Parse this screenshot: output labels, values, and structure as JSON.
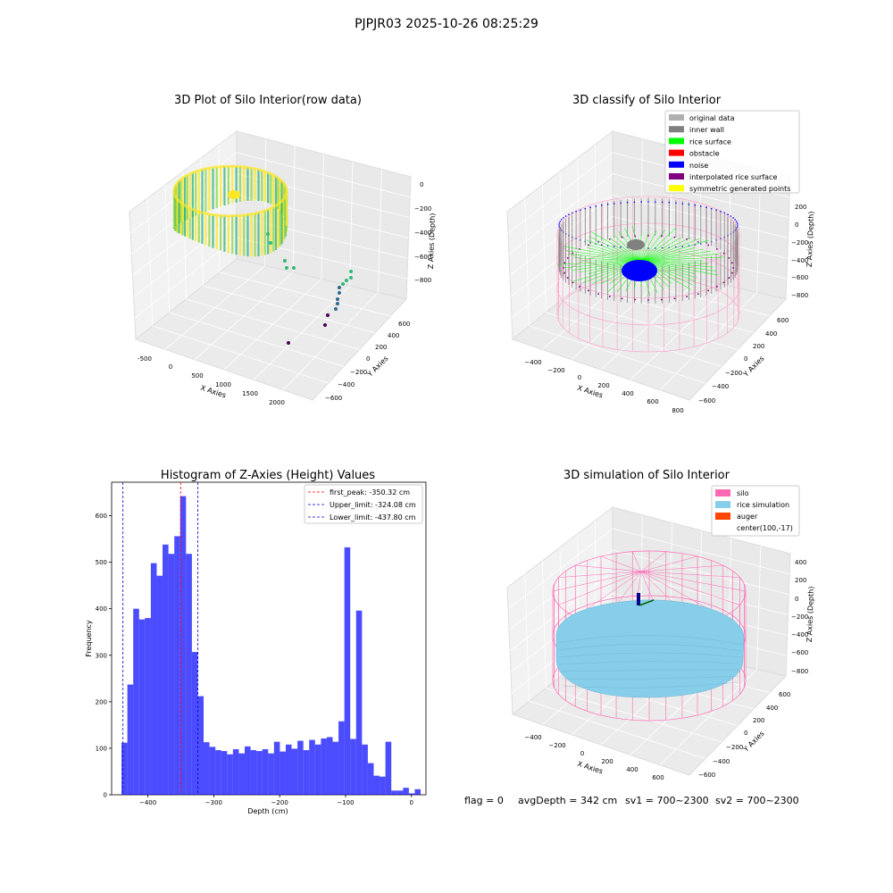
{
  "figure": {
    "suptitle": "PJPJR03 2025-10-26 08:25:29",
    "footer": {
      "flag": "flag = 0",
      "avg_depth": "avgDepth = 342 cm",
      "sv1": "sv1 = 700~2300",
      "sv2": "sv2 = 700~2300"
    }
  },
  "panel_raw": {
    "title": "3D Plot of Silo Interior(row data)",
    "xlabel": "X Axies",
    "ylabel": "Y Axies",
    "zlabel": "Z Axies (Depth)",
    "xticks": [
      "-500",
      "0",
      "500",
      "1000",
      "1500",
      "2000"
    ],
    "yticks": [
      "600",
      "400",
      "200",
      "0",
      "−200",
      "−400",
      "−600"
    ],
    "zticks": [
      "0",
      "−200",
      "−400",
      "−600",
      "−800"
    ],
    "colormap": [
      "#440154",
      "#31688e",
      "#35b779",
      "#90d743",
      "#fde725"
    ]
  },
  "panel_classify": {
    "title": "3D classify of Silo Interior",
    "xlabel": "X Axies",
    "ylabel": "Y Axies",
    "zlabel": "Z Axies (Depth)",
    "xticks": [
      "−400",
      "−200",
      "0",
      "200",
      "400",
      "600",
      "800"
    ],
    "yticks": [
      "600",
      "400",
      "200",
      "0",
      "−200",
      "−400",
      "−600"
    ],
    "zticks": [
      "200",
      "0",
      "−200",
      "−400",
      "−600",
      "−800"
    ],
    "legend": [
      {
        "label": "original data",
        "color": "#b0b0b0"
      },
      {
        "label": "inner wall",
        "color": "#808080"
      },
      {
        "label": "rice surface",
        "color": "#00ff00"
      },
      {
        "label": "obstacle",
        "color": "#ff0000"
      },
      {
        "label": "noise",
        "color": "#0000ff"
      },
      {
        "label": "interpolated rice surface",
        "color": "#800080"
      },
      {
        "label": "symmetric generated points",
        "color": "#ffff00"
      }
    ],
    "cylinder_color": "#ff9ec8"
  },
  "panel_sim": {
    "title": "3D simulation of Silo Interior",
    "xlabel": "X Axies",
    "ylabel": "Y Axies",
    "zlabel": "Z Axies (Depth)",
    "xticks": [
      "−400",
      "−200",
      "0",
      "200",
      "400",
      "600"
    ],
    "yticks": [
      "600",
      "400",
      "200",
      "0",
      "−200",
      "−400",
      "−600"
    ],
    "zticks": [
      "400",
      "200",
      "0",
      "−200",
      "−400",
      "−600",
      "−800"
    ],
    "legend": [
      {
        "label": "silo",
        "color": "#ff69b4"
      },
      {
        "label": "rice simulation",
        "color": "#87ceeb"
      },
      {
        "label": "auger",
        "color": "#ff4500"
      },
      {
        "label": "center(100,-17)",
        "color": ""
      }
    ]
  },
  "chart_data": {
    "type": "bar",
    "title": "Histogram of Z-Axies (Height) Values",
    "xlabel": "Depth (cm)",
    "ylabel": "Frequency",
    "xlim": [
      -455,
      22
    ],
    "ylim": [
      0,
      672
    ],
    "xticks": [
      -400,
      -300,
      -200,
      -100,
      0
    ],
    "xtick_labels": [
      "−400",
      "−300",
      "−200",
      "−100",
      "0"
    ],
    "yticks": [
      0,
      100,
      200,
      300,
      400,
      500,
      600
    ],
    "bin_start": -440,
    "bin_width": 8.9,
    "values": [
      112,
      237,
      400,
      377,
      380,
      498,
      471,
      538,
      518,
      556,
      642,
      518,
      307,
      212,
      113,
      103,
      96,
      94,
      87,
      98,
      89,
      104,
      96,
      94,
      98,
      89,
      114,
      93,
      108,
      99,
      116,
      96,
      118,
      108,
      121,
      124,
      114,
      158,
      532,
      120,
      396,
      108,
      68,
      41,
      39,
      114,
      9,
      9,
      15,
      3,
      12
    ],
    "bar_color": "#0000ff",
    "legend": [
      {
        "label": "first_peak: -350.32 cm",
        "value": -350.32,
        "color": "#ff0000"
      },
      {
        "label": "Upper_limit: -324.08 cm",
        "value": -324.08,
        "color": "#0000cc"
      },
      {
        "label": "Lower_limit: -437.80 cm",
        "value": -437.8,
        "color": "#0000cc"
      }
    ]
  }
}
